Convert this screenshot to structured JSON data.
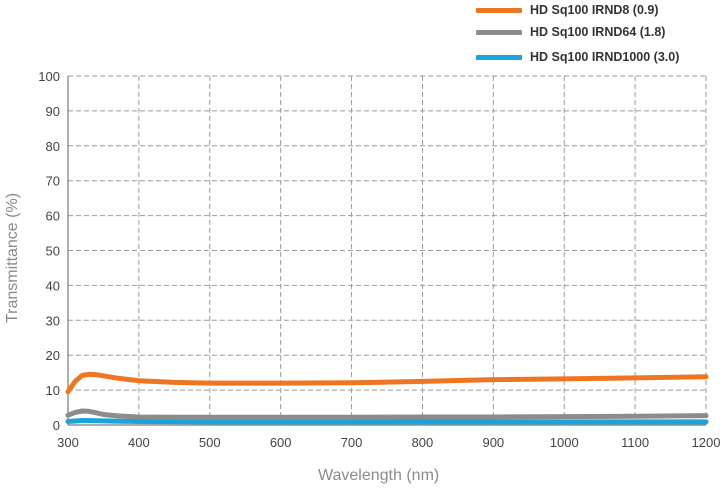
{
  "chart_data": {
    "type": "line",
    "title": "",
    "xlabel": "Wavelength (nm)",
    "ylabel": "Transmittance (%)",
    "xlim": [
      300,
      1200
    ],
    "ylim": [
      0,
      100
    ],
    "xticks": [
      "300",
      "400",
      "500",
      "600",
      "700",
      "800",
      "900",
      "1000",
      "1100",
      "1200"
    ],
    "yticks": [
      "0",
      "10",
      "20",
      "30",
      "40",
      "50",
      "60",
      "70",
      "80",
      "90",
      "100"
    ],
    "grid": true,
    "legend_position": "top-right",
    "series": [
      {
        "name": "HD Sq100 IRND8 (0.9)",
        "color": "#ee7623",
        "x": [
          300,
          310,
          320,
          330,
          340,
          350,
          370,
          400,
          450,
          500,
          600,
          700,
          800,
          900,
          1000,
          1100,
          1200
        ],
        "y": [
          9.5,
          12.5,
          14.2,
          14.5,
          14.4,
          14.1,
          13.4,
          12.7,
          12.2,
          12.0,
          12.0,
          12.1,
          12.5,
          13.0,
          13.2,
          13.5,
          13.8
        ]
      },
      {
        "name": "HD Sq100 IRND64 (1.8)",
        "color": "#8c8c8c",
        "x": [
          300,
          310,
          320,
          330,
          340,
          350,
          370,
          400,
          450,
          500,
          600,
          700,
          800,
          900,
          1000,
          1100,
          1200
        ],
        "y": [
          2.8,
          3.6,
          4.0,
          3.9,
          3.5,
          3.0,
          2.6,
          2.3,
          2.2,
          2.2,
          2.2,
          2.2,
          2.3,
          2.3,
          2.4,
          2.5,
          2.7
        ]
      },
      {
        "name": "HD Sq100 IRND1000 (3.0)",
        "color": "#1aa3dc",
        "x": [
          300,
          320,
          340,
          400,
          500,
          600,
          700,
          800,
          900,
          1000,
          1100,
          1200
        ],
        "y": [
          1.0,
          1.3,
          1.2,
          1.0,
          0.9,
          0.9,
          0.9,
          0.9,
          0.9,
          0.9,
          0.9,
          0.9
        ]
      }
    ]
  }
}
